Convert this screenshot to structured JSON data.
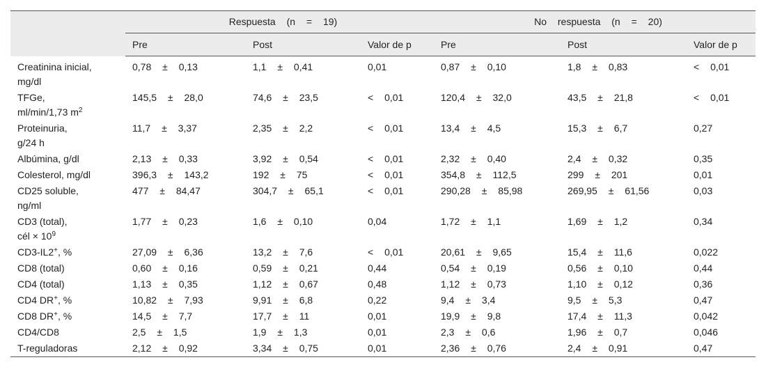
{
  "table": {
    "groups": [
      "Respuesta (n = 19)",
      "No respuesta (n = 20)"
    ],
    "subheaders": [
      "Pre",
      "Post",
      "Valor de p",
      "Pre",
      "Post",
      "Valor de p"
    ],
    "rows": [
      {
        "label": [
          [
            "Creatinina inicial,"
          ],
          [
            "mg/dl"
          ]
        ],
        "cells": [
          "0,78 ± 0,13",
          "1,1 ± 0,41",
          "0,01",
          "0,87 ± 0,10",
          "1,8 ± 0,83",
          "< 0,01"
        ]
      },
      {
        "label": [
          [
            "TFGe,"
          ],
          [
            "ml/min/1,73 m",
            {
              "sup": "2"
            }
          ]
        ],
        "cells": [
          "145,5 ± 28,0",
          "74,6 ± 23,5",
          "< 0,01",
          "120,4 ± 32,0",
          "43,5 ± 21,8",
          "< 0,01"
        ]
      },
      {
        "label": [
          [
            "Proteinuria,"
          ],
          [
            "g/24 h"
          ]
        ],
        "cells": [
          "11,7 ± 3,37",
          "2,35 ± 2,2",
          "< 0,01",
          "13,4 ± 4,5",
          "15,3 ± 6,7",
          "0,27"
        ]
      },
      {
        "label": [
          [
            "Albúmina, g/dl"
          ]
        ],
        "cells": [
          "2,13 ± 0,33",
          "3,92 ± 0,54",
          "< 0,01",
          "2,32 ± 0,40",
          "2,4 ± 0,32",
          "0,35"
        ]
      },
      {
        "label": [
          [
            "Colesterol, mg/dl"
          ]
        ],
        "cells": [
          "396,3 ± 143,2",
          "192 ± 75",
          "< 0,01",
          "354,8 ± 112,5",
          "299 ± 201",
          "0,01"
        ]
      },
      {
        "label": [
          [
            "CD25 soluble,"
          ],
          [
            "ng/ml"
          ]
        ],
        "cells": [
          "477 ± 84,47",
          "304,7 ± 65,1",
          "< 0,01",
          "290,28 ± 85,98",
          "269,95 ± 61,56",
          "0,03"
        ]
      },
      {
        "label": [
          [
            "CD3 (total),"
          ],
          [
            "cél × 10",
            {
              "sup": "9"
            }
          ]
        ],
        "cells": [
          "1,77 ± 0,23",
          "1,6 ± 0,10",
          "0,04",
          "1,72 ± 1,1",
          "1,69 ± 1,2",
          "0,34"
        ]
      },
      {
        "label": [
          [
            "CD3-IL2",
            {
              "sup": "+"
            },
            ", %"
          ]
        ],
        "cells": [
          "27,09 ± 6,36",
          "13,2 ± 7,6",
          "< 0,01",
          "20,61 ± 9,65",
          "15,4 ± 11,6",
          "0,022"
        ]
      },
      {
        "label": [
          [
            "CD8 (total)"
          ]
        ],
        "cells": [
          "0,60 ± 0,16",
          "0,59 ± 0,21",
          "0,44",
          "0,54 ± 0,19",
          "0,56 ± 0,10",
          "0,44"
        ]
      },
      {
        "label": [
          [
            "CD4 (total)"
          ]
        ],
        "cells": [
          "1,13 ± 0,35",
          "1,12 ± 0,67",
          "0,48",
          "1,12 ± 0,73",
          "1,10 ± 0,12",
          "0,36"
        ]
      },
      {
        "label": [
          [
            "CD4 DR",
            {
              "sup": "+"
            },
            ", %"
          ]
        ],
        "cells": [
          "10,82 ± 7,93",
          "9,91 ± 6,8",
          "0,22",
          "9,4 ± 3,4",
          "9,5 ± 5,3",
          "0,47"
        ]
      },
      {
        "label": [
          [
            "CD8 DR",
            {
              "sup": "+"
            },
            ", %"
          ]
        ],
        "cells": [
          "14,5 ± 7,7",
          "17,7 ± 11",
          "0,01",
          "19,9 ± 9,8",
          "17,4 ± 11,3",
          "0,042"
        ]
      },
      {
        "label": [
          [
            "CD4/CD8"
          ]
        ],
        "cells": [
          "2,5 ± 1,5",
          "1,9 ± 1,3",
          "0,01",
          "2,3 ± 0,6",
          "1,96 ± 0,7",
          "0,046"
        ]
      },
      {
        "label": [
          [
            "T-reguladoras"
          ]
        ],
        "cells": [
          "2,12 ± 0,92",
          "3,34 ± 0,75",
          "0,01",
          "2,36 ± 0,76",
          "2,4 ± 0,91",
          "0,47"
        ]
      }
    ]
  }
}
